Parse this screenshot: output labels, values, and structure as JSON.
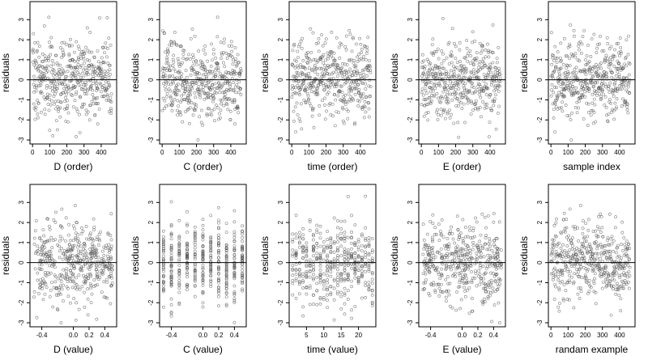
{
  "figure": {
    "seed": 7,
    "point_color": "#555555",
    "frame_color": "#000000",
    "zero_line_color": "#000000"
  },
  "chart_data": [
    {
      "type": "scatter",
      "xlabel": "D (order)",
      "ylabel": "residuals",
      "xlim": [
        -15,
        490
      ],
      "ylim": [
        -3.2,
        3.9
      ],
      "xticks": [
        0,
        100,
        200,
        300,
        400
      ],
      "xtick_labels": [
        "0",
        "100",
        "200",
        "300",
        "400"
      ],
      "yticks": [
        -3,
        -2,
        -1,
        0,
        1,
        2,
        3
      ],
      "ytick_labels": [
        "-3",
        "-2",
        "-1",
        "0",
        "1",
        "2",
        "3"
      ],
      "h_line": 0,
      "x_kind": "order",
      "n": 460,
      "x_min": 1,
      "x_max": 460
    },
    {
      "type": "scatter",
      "xlabel": "C (order)",
      "ylabel": "residuals",
      "xlim": [
        -15,
        490
      ],
      "ylim": [
        -3.2,
        3.9
      ],
      "xticks": [
        0,
        100,
        200,
        300,
        400
      ],
      "xtick_labels": [
        "0",
        "100",
        "200",
        "300",
        "400"
      ],
      "yticks": [
        -3,
        -2,
        -1,
        0,
        1,
        2,
        3
      ],
      "ytick_labels": [
        "-3",
        "-2",
        "-1",
        "0",
        "1",
        "2",
        "3"
      ],
      "h_line": 0,
      "x_kind": "order",
      "n": 460,
      "x_min": 1,
      "x_max": 460
    },
    {
      "type": "scatter",
      "xlabel": "time (order)",
      "ylabel": "residuals",
      "xlim": [
        -15,
        490
      ],
      "ylim": [
        -3.2,
        3.9
      ],
      "xticks": [
        0,
        100,
        200,
        300,
        400
      ],
      "xtick_labels": [
        "0",
        "100",
        "200",
        "300",
        "400"
      ],
      "yticks": [
        -3,
        -2,
        -1,
        0,
        1,
        2,
        3
      ],
      "ytick_labels": [
        "-3",
        "-2",
        "-1",
        "0",
        "1",
        "2",
        "3"
      ],
      "h_line": 0,
      "x_kind": "order",
      "n": 460,
      "x_min": 1,
      "x_max": 460
    },
    {
      "type": "scatter",
      "xlabel": "E (order)",
      "ylabel": "residuals",
      "xlim": [
        -15,
        490
      ],
      "ylim": [
        -3.2,
        3.9
      ],
      "xticks": [
        0,
        100,
        200,
        300,
        400
      ],
      "xtick_labels": [
        "0",
        "100",
        "200",
        "300",
        "400"
      ],
      "yticks": [
        -3,
        -2,
        -1,
        0,
        1,
        2,
        3
      ],
      "ytick_labels": [
        "-3",
        "-2",
        "-1",
        "0",
        "1",
        "2",
        "3"
      ],
      "h_line": 0,
      "x_kind": "order",
      "n": 460,
      "x_min": 1,
      "x_max": 460
    },
    {
      "type": "scatter",
      "xlabel": "sample index",
      "ylabel": "residuals",
      "xlim": [
        -15,
        490
      ],
      "ylim": [
        -3.2,
        3.9
      ],
      "xticks": [
        0,
        100,
        200,
        300,
        400
      ],
      "xtick_labels": [
        "0",
        "100",
        "200",
        "300",
        "400"
      ],
      "yticks": [
        -3,
        -2,
        -1,
        0,
        1,
        2,
        3
      ],
      "ytick_labels": [
        "-3",
        "-2",
        "-1",
        "0",
        "1",
        "2",
        "3"
      ],
      "h_line": 0,
      "x_kind": "order",
      "n": 460,
      "x_min": 1,
      "x_max": 460
    },
    {
      "type": "scatter",
      "xlabel": "D (value)",
      "ylabel": "residuals",
      "xlim": [
        -0.55,
        0.55
      ],
      "ylim": [
        -3.2,
        3.9
      ],
      "xticks": [
        -0.4,
        0.0,
        0.2,
        0.4
      ],
      "xtick_labels": [
        "-0.4",
        "0.0",
        "0.2",
        "0.4"
      ],
      "yticks": [
        -3,
        -2,
        -1,
        0,
        1,
        2,
        3
      ],
      "ytick_labels": [
        "-3",
        "-2",
        "-1",
        "0",
        "1",
        "2",
        "3"
      ],
      "h_line": 0,
      "x_kind": "uniform",
      "n": 460,
      "x_min": -0.5,
      "x_max": 0.5
    },
    {
      "type": "scatter",
      "xlabel": "C (value)",
      "ylabel": "residuals",
      "xlim": [
        -0.55,
        0.55
      ],
      "ylim": [
        -3.2,
        3.9
      ],
      "xticks": [
        -0.4,
        0.0,
        0.2,
        0.4
      ],
      "xtick_labels": [
        "-0.4",
        "0.0",
        "0.2",
        "0.4"
      ],
      "yticks": [
        -3,
        -2,
        -1,
        0,
        1,
        2,
        3
      ],
      "ytick_labels": [
        "-3",
        "-2",
        "-1",
        "0",
        "1",
        "2",
        "3"
      ],
      "h_line": 0,
      "x_kind": "discrete",
      "x_levels": [
        -0.5,
        -0.4,
        -0.3,
        -0.2,
        -0.1,
        0.0,
        0.1,
        0.2,
        0.3,
        0.4,
        0.5
      ],
      "n": 460
    },
    {
      "type": "scatter",
      "xlabel": "time (value)",
      "ylabel": "residuals",
      "xlim": [
        0,
        25
      ],
      "ylim": [
        -3.2,
        3.9
      ],
      "xticks": [
        5,
        10,
        15,
        20
      ],
      "xtick_labels": [
        "5",
        "10",
        "15",
        "20"
      ],
      "yticks": [
        -3,
        -2,
        -1,
        0,
        1,
        2,
        3
      ],
      "ytick_labels": [
        "-3",
        "-2",
        "-1",
        "0",
        "1",
        "2",
        "3"
      ],
      "h_line": 0,
      "x_kind": "integer",
      "x_min": 1,
      "x_max": 24,
      "n": 460
    },
    {
      "type": "scatter",
      "xlabel": "E (value)",
      "ylabel": "residuals",
      "xlim": [
        -0.55,
        0.55
      ],
      "ylim": [
        -3.2,
        3.9
      ],
      "xticks": [
        -0.4,
        0.0,
        0.2,
        0.4
      ],
      "xtick_labels": [
        "-0.4",
        "0.0",
        "0.2",
        "0.4"
      ],
      "yticks": [
        -3,
        -2,
        -1,
        0,
        1,
        2,
        3
      ],
      "ytick_labels": [
        "-3",
        "-2",
        "-1",
        "0",
        "1",
        "2",
        "3"
      ],
      "h_line": 0,
      "x_kind": "uniform",
      "n": 460,
      "x_min": -0.5,
      "x_max": 0.5
    },
    {
      "type": "scatter",
      "xlabel": "randam example",
      "ylabel": "residuals",
      "xlim": [
        -15,
        490
      ],
      "ylim": [
        -3.2,
        3.9
      ],
      "xticks": [
        0,
        100,
        200,
        300,
        400
      ],
      "xtick_labels": [
        "0",
        "100",
        "200",
        "300",
        "400"
      ],
      "yticks": [
        -3,
        -2,
        -1,
        0,
        1,
        2,
        3
      ],
      "ytick_labels": [
        "-3",
        "-2",
        "-1",
        "0",
        "1",
        "2",
        "3"
      ],
      "h_line": 0,
      "x_kind": "order",
      "n": 460,
      "x_min": 1,
      "x_max": 460
    }
  ]
}
